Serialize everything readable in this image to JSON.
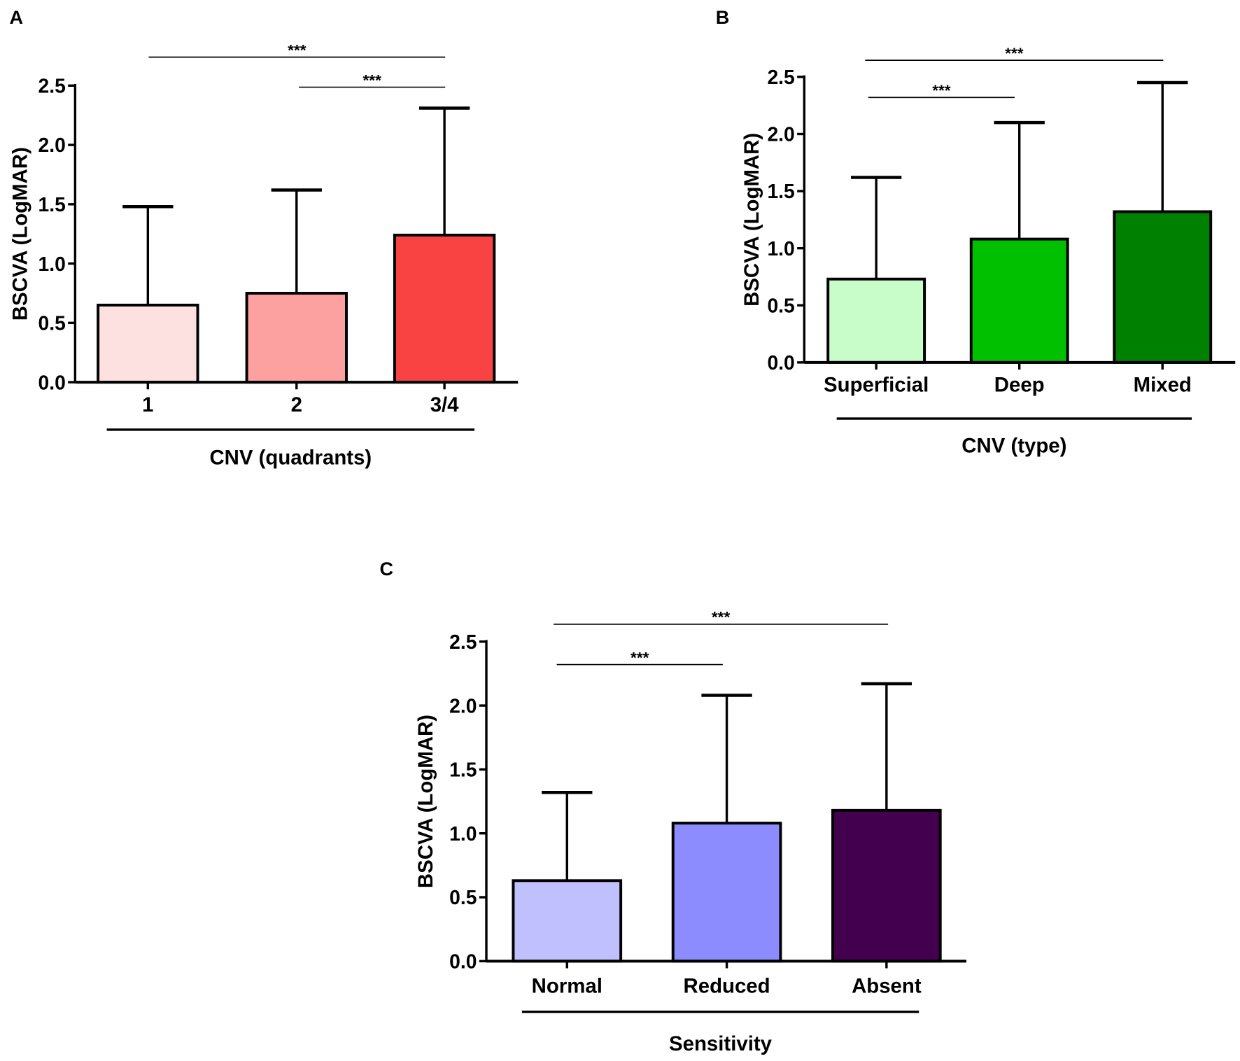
{
  "chart_data": [
    {
      "type": "bar",
      "panel": "A",
      "ylabel": "BSCVA (LogMAR)",
      "xlabel": "CNV (quadrants)",
      "ylim": [
        0,
        2.5
      ],
      "yticks": [
        "0.0",
        "0.5",
        "1.0",
        "1.5",
        "2.0",
        "2.5"
      ],
      "categories": [
        "1",
        "2",
        "3/4"
      ],
      "values": [
        0.65,
        0.75,
        1.24
      ],
      "error_upper": [
        1.48,
        1.62,
        2.31
      ],
      "colors": [
        "#fde0e0",
        "#fda0a0",
        "#f94242"
      ],
      "significance": [
        {
          "from": "1",
          "to": "3/4",
          "label": "***"
        },
        {
          "from": "2",
          "to": "3/4",
          "label": "***"
        }
      ]
    },
    {
      "type": "bar",
      "panel": "B",
      "ylabel": "BSCVA (LogMAR)",
      "xlabel": "CNV (type)",
      "ylim": [
        0,
        2.5
      ],
      "yticks": [
        "0.0",
        "0.5",
        "1.0",
        "1.5",
        "2.0",
        "2.5"
      ],
      "categories": [
        "Superficial",
        "Deep",
        "Mixed"
      ],
      "values": [
        0.73,
        1.08,
        1.32
      ],
      "error_upper": [
        1.62,
        2.1,
        2.45
      ],
      "colors": [
        "#c8fcc8",
        "#00c000",
        "#008000"
      ],
      "significance": [
        {
          "from": "Superficial",
          "to": "Mixed",
          "label": "***"
        },
        {
          "from": "Superficial",
          "to": "Deep",
          "label": "***"
        }
      ]
    },
    {
      "type": "bar",
      "panel": "C",
      "ylabel": "BSCVA (LogMAR)",
      "xlabel": "Sensitivity",
      "ylim": [
        0,
        2.5
      ],
      "yticks": [
        "0.0",
        "0.5",
        "1.0",
        "1.5",
        "2.0",
        "2.5"
      ],
      "categories": [
        "Normal",
        "Reduced",
        "Absent"
      ],
      "values": [
        0.63,
        1.08,
        1.18
      ],
      "error_upper": [
        1.32,
        2.08,
        2.17
      ],
      "colors": [
        "#c0c0ff",
        "#8c8cff",
        "#42004f"
      ],
      "significance": [
        {
          "from": "Normal",
          "to": "Absent",
          "label": "***"
        },
        {
          "from": "Normal",
          "to": "Reduced",
          "label": "***"
        }
      ]
    }
  ]
}
